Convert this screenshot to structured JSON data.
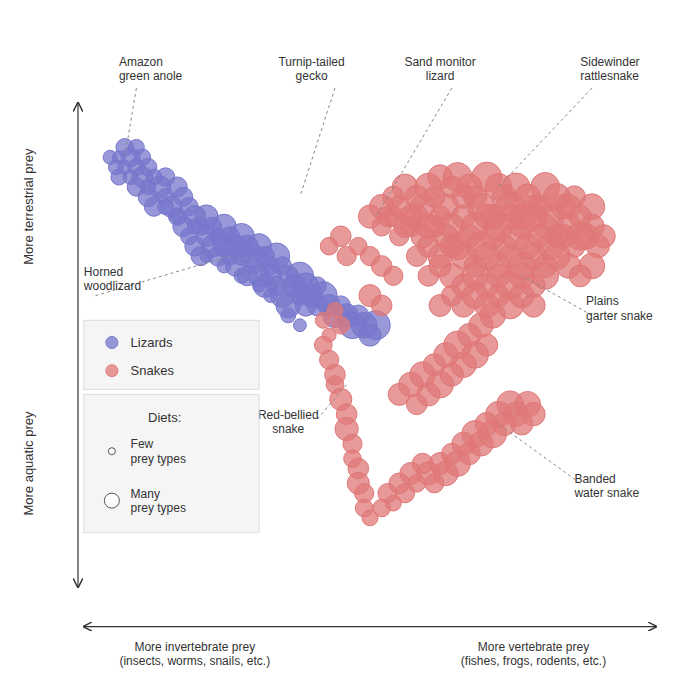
{
  "chart_data": {
    "type": "scatter",
    "xlim": [
      0,
      1
    ],
    "ylim": [
      0,
      1
    ],
    "xticks": [],
    "yticks": [],
    "tick_labels": false,
    "grid": false,
    "legend": "center left",
    "xlabel_left": "More invertebrate prey\n(insects, worms, snails, etc.)",
    "xlabel_right": "More vertebrate prey\n(fishes, frogs, rodents, etc.)",
    "ylabel_top": "More  terrestrial prey",
    "ylabel_bottom": "More  aquatic prey",
    "size_legend": {
      "title": "Diets:",
      "labels": [
        "Few\nprey types",
        "Many\nprey types"
      ]
    },
    "annotations": [
      "Amazon\ngreen anole",
      "Turnip-tailed\ngecko",
      "Sand monitor\nlizard",
      "Sidewinder\nrattlesnake",
      "Horned\nwoodlizard",
      "Plains\ngarter snake",
      "Red-bellied\nsnake",
      "Banded\nwater snake"
    ],
    "series": [
      {
        "name": "Lizards",
        "color": "#7777cc",
        "x": [
          0.055,
          0.065,
          0.07,
          0.08,
          0.09,
          0.1,
          0.1,
          0.11,
          0.12,
          0.12,
          0.13,
          0.13,
          0.14,
          0.15,
          0.15,
          0.16,
          0.17,
          0.17,
          0.18,
          0.18,
          0.19,
          0.19,
          0.2,
          0.2,
          0.21,
          0.21,
          0.22,
          0.22,
          0.23,
          0.23,
          0.24,
          0.24,
          0.25,
          0.25,
          0.26,
          0.26,
          0.27,
          0.27,
          0.28,
          0.28,
          0.29,
          0.29,
          0.3,
          0.3,
          0.31,
          0.31,
          0.32,
          0.32,
          0.33,
          0.33,
          0.34,
          0.34,
          0.35,
          0.35,
          0.36,
          0.36,
          0.37,
          0.38,
          0.38,
          0.39,
          0.39,
          0.4,
          0.41,
          0.41,
          0.42,
          0.43,
          0.44,
          0.45,
          0.46,
          0.47,
          0.48,
          0.49,
          0.5,
          0.51,
          0.07,
          0.08,
          0.09,
          0.1,
          0.11,
          0.12,
          0.15,
          0.17,
          0.2,
          0.22,
          0.25,
          0.28,
          0.31,
          0.33,
          0.36,
          0.38
        ],
        "y": [
          0.88,
          0.86,
          0.84,
          0.9,
          0.88,
          0.86,
          0.82,
          0.84,
          0.86,
          0.8,
          0.84,
          0.78,
          0.82,
          0.84,
          0.8,
          0.78,
          0.82,
          0.76,
          0.8,
          0.74,
          0.78,
          0.72,
          0.76,
          0.7,
          0.74,
          0.68,
          0.76,
          0.72,
          0.74,
          0.7,
          0.72,
          0.68,
          0.74,
          0.7,
          0.72,
          0.68,
          0.7,
          0.66,
          0.72,
          0.68,
          0.7,
          0.64,
          0.68,
          0.66,
          0.7,
          0.64,
          0.68,
          0.62,
          0.66,
          0.64,
          0.68,
          0.62,
          0.66,
          0.6,
          0.64,
          0.58,
          0.62,
          0.64,
          0.6,
          0.62,
          0.58,
          0.6,
          0.62,
          0.58,
          0.6,
          0.58,
          0.56,
          0.58,
          0.56,
          0.54,
          0.56,
          0.54,
          0.52,
          0.54,
          0.88,
          0.86,
          0.84,
          0.9,
          0.88,
          0.82,
          0.78,
          0.76,
          0.74,
          0.68,
          0.66,
          0.64,
          0.62,
          0.6,
          0.56,
          0.54
        ],
        "size": [
          6,
          7,
          8,
          10,
          12,
          9,
          11,
          14,
          10,
          13,
          8,
          12,
          16,
          11,
          9,
          15,
          13,
          10,
          12,
          14,
          11,
          9,
          16,
          13,
          10,
          12,
          18,
          14,
          11,
          16,
          9,
          13,
          20,
          15,
          12,
          10,
          17,
          14,
          22,
          11,
          16,
          13,
          19,
          9,
          21,
          15,
          12,
          18,
          10,
          16,
          23,
          13,
          11,
          19,
          14,
          20,
          17,
          25,
          12,
          22,
          15,
          18,
          10,
          14,
          26,
          16,
          20,
          12,
          18,
          24,
          14,
          22,
          16,
          28,
          5,
          6,
          7,
          8,
          9,
          7,
          8,
          6,
          7,
          5,
          6,
          7,
          5,
          6,
          7,
          5
        ]
      },
      {
        "name": "Snakes",
        "color": "#e07878",
        "x": [
          0.5,
          0.52,
          0.54,
          0.56,
          0.58,
          0.6,
          0.62,
          0.64,
          0.65,
          0.67,
          0.68,
          0.7,
          0.72,
          0.73,
          0.75,
          0.77,
          0.78,
          0.8,
          0.82,
          0.83,
          0.85,
          0.53,
          0.55,
          0.57,
          0.59,
          0.61,
          0.63,
          0.66,
          0.69,
          0.71,
          0.74,
          0.76,
          0.79,
          0.81,
          0.84,
          0.86,
          0.88,
          0.52,
          0.54,
          0.56,
          0.58,
          0.6,
          0.62,
          0.64,
          0.66,
          0.68,
          0.7,
          0.72,
          0.74,
          0.76,
          0.78,
          0.8,
          0.82,
          0.84,
          0.86,
          0.88,
          0.9,
          0.55,
          0.57,
          0.59,
          0.61,
          0.63,
          0.65,
          0.67,
          0.69,
          0.71,
          0.73,
          0.75,
          0.77,
          0.79,
          0.81,
          0.83,
          0.85,
          0.87,
          0.89,
          0.58,
          0.6,
          0.62,
          0.64,
          0.66,
          0.68,
          0.7,
          0.72,
          0.74,
          0.76,
          0.78,
          0.8,
          0.82,
          0.84,
          0.86,
          0.88,
          0.6,
          0.62,
          0.64,
          0.66,
          0.68,
          0.7,
          0.72,
          0.74,
          0.76,
          0.78,
          0.8,
          0.62,
          0.64,
          0.66,
          0.68,
          0.7,
          0.72,
          0.74,
          0.76,
          0.78,
          0.5,
          0.52,
          0.54,
          0.5,
          0.52,
          0.48,
          0.46,
          0.45,
          0.43,
          0.42,
          0.43,
          0.44,
          0.44,
          0.45,
          0.46,
          0.46,
          0.47,
          0.47,
          0.48,
          0.48,
          0.49,
          0.49,
          0.5,
          0.52,
          0.53,
          0.54,
          0.55,
          0.56,
          0.57,
          0.58,
          0.59,
          0.6,
          0.61,
          0.62,
          0.63,
          0.64,
          0.65,
          0.66,
          0.67,
          0.68,
          0.69,
          0.7,
          0.71,
          0.72,
          0.73,
          0.74,
          0.75,
          0.76,
          0.77,
          0.78,
          0.55,
          0.57,
          0.58,
          0.59,
          0.6,
          0.61,
          0.62,
          0.63,
          0.64,
          0.65,
          0.66,
          0.67,
          0.68,
          0.69,
          0.7,
          0.71,
          0.42,
          0.43,
          0.44,
          0.45
        ],
        "y": [
          0.76,
          0.78,
          0.8,
          0.82,
          0.8,
          0.82,
          0.84,
          0.82,
          0.84,
          0.82,
          0.8,
          0.84,
          0.82,
          0.8,
          0.82,
          0.8,
          0.78,
          0.82,
          0.8,
          0.78,
          0.8,
          0.76,
          0.78,
          0.76,
          0.78,
          0.8,
          0.78,
          0.8,
          0.78,
          0.76,
          0.78,
          0.76,
          0.78,
          0.76,
          0.78,
          0.76,
          0.78,
          0.74,
          0.76,
          0.74,
          0.76,
          0.74,
          0.76,
          0.74,
          0.76,
          0.74,
          0.76,
          0.74,
          0.76,
          0.74,
          0.76,
          0.74,
          0.72,
          0.74,
          0.72,
          0.74,
          0.72,
          0.72,
          0.74,
          0.72,
          0.74,
          0.72,
          0.7,
          0.72,
          0.7,
          0.72,
          0.7,
          0.72,
          0.7,
          0.72,
          0.7,
          0.72,
          0.7,
          0.72,
          0.7,
          0.68,
          0.7,
          0.68,
          0.7,
          0.68,
          0.66,
          0.68,
          0.66,
          0.68,
          0.66,
          0.68,
          0.66,
          0.68,
          0.66,
          0.64,
          0.66,
          0.64,
          0.66,
          0.64,
          0.62,
          0.64,
          0.62,
          0.64,
          0.62,
          0.64,
          0.62,
          0.64,
          0.58,
          0.6,
          0.58,
          0.6,
          0.58,
          0.6,
          0.58,
          0.6,
          0.58,
          0.68,
          0.66,
          0.64,
          0.6,
          0.58,
          0.7,
          0.68,
          0.72,
          0.7,
          0.5,
          0.47,
          0.44,
          0.42,
          0.39,
          0.36,
          0.33,
          0.3,
          0.27,
          0.25,
          0.22,
          0.2,
          0.17,
          0.15,
          0.17,
          0.2,
          0.18,
          0.22,
          0.2,
          0.24,
          0.22,
          0.26,
          0.24,
          0.22,
          0.26,
          0.24,
          0.28,
          0.26,
          0.3,
          0.28,
          0.32,
          0.3,
          0.34,
          0.32,
          0.36,
          0.34,
          0.38,
          0.36,
          0.34,
          0.38,
          0.36,
          0.4,
          0.42,
          0.38,
          0.44,
          0.4,
          0.46,
          0.42,
          0.48,
          0.44,
          0.5,
          0.46,
          0.52,
          0.48,
          0.54,
          0.5,
          0.56,
          0.55,
          0.52,
          0.57,
          0.54
        ],
        "size": [
          18,
          20,
          15,
          22,
          18,
          25,
          20,
          16,
          28,
          22,
          18,
          30,
          24,
          20,
          26,
          22,
          18,
          28,
          24,
          20,
          16,
          14,
          16,
          18,
          20,
          15,
          22,
          18,
          25,
          20,
          28,
          22,
          18,
          24,
          20,
          16,
          22,
          12,
          14,
          16,
          18,
          20,
          15,
          22,
          18,
          25,
          20,
          28,
          22,
          18,
          24,
          20,
          16,
          22,
          26,
          20,
          18,
          12,
          14,
          18,
          16,
          20,
          24,
          18,
          28,
          22,
          18,
          26,
          22,
          18,
          24,
          20,
          16,
          22,
          18,
          14,
          16,
          20,
          18,
          22,
          16,
          24,
          20,
          18,
          26,
          22,
          18,
          24,
          20,
          16,
          22,
          14,
          16,
          20,
          18,
          24,
          20,
          18,
          26,
          22,
          18,
          24,
          16,
          14,
          18,
          22,
          20,
          16,
          24,
          20,
          18,
          12,
          14,
          12,
          16,
          14,
          10,
          12,
          14,
          10,
          10,
          12,
          14,
          10,
          16,
          14,
          18,
          12,
          10,
          14,
          16,
          12,
          10,
          8,
          10,
          12,
          8,
          14,
          12,
          16,
          10,
          14,
          18,
          12,
          16,
          20,
          14,
          22,
          18,
          16,
          24,
          20,
          18,
          26,
          22,
          18,
          24,
          20,
          16,
          22,
          18,
          16,
          20,
          14,
          22,
          18,
          16,
          24,
          20,
          18,
          26,
          22,
          18,
          24,
          20,
          16,
          22,
          8,
          6,
          8,
          10
        ]
      }
    ]
  }
}
